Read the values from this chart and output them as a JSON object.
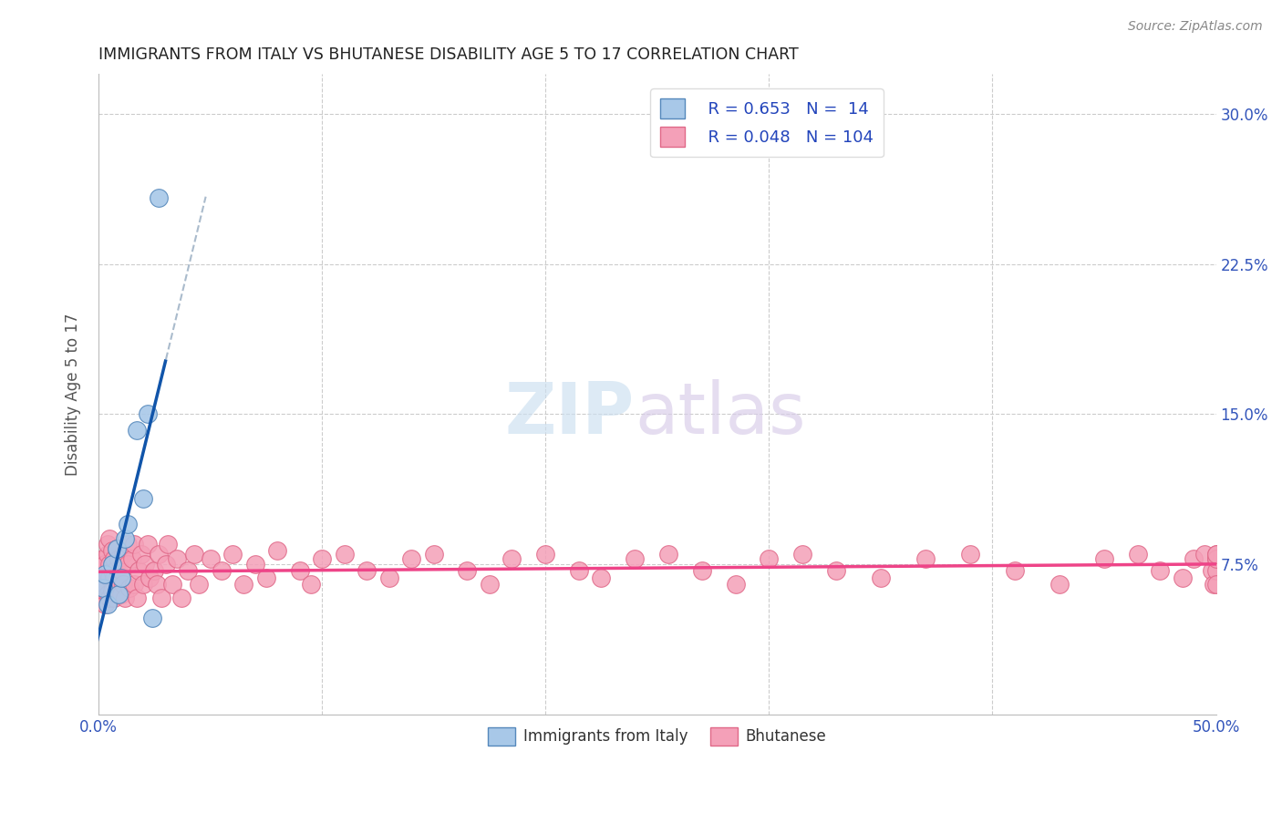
{
  "title": "IMMIGRANTS FROM ITALY VS BHUTANESE DISABILITY AGE 5 TO 17 CORRELATION CHART",
  "source": "Source: ZipAtlas.com",
  "ylabel": "Disability Age 5 to 17",
  "xlim": [
    0.0,
    0.5
  ],
  "ylim": [
    0.0,
    0.32
  ],
  "xticks": [
    0.0,
    0.1,
    0.2,
    0.3,
    0.4,
    0.5
  ],
  "xtick_labels": [
    "0.0%",
    "",
    "",
    "",
    "",
    "50.0%"
  ],
  "yticks_right": [
    0.075,
    0.15,
    0.225,
    0.3
  ],
  "ytick_labels_right": [
    "7.5%",
    "15.0%",
    "22.5%",
    "30.0%"
  ],
  "blue_scatter_color": "#a8c8e8",
  "blue_scatter_edge": "#5588bb",
  "pink_scatter_color": "#f4a0b8",
  "pink_scatter_edge": "#e06888",
  "blue_line_color": "#1155aa",
  "pink_line_color": "#ee4488",
  "dash_line_color": "#aabbcc",
  "legend_r1": "R = 0.653",
  "legend_n1": "N =  14",
  "legend_r2": "R = 0.048",
  "legend_n2": "N = 104",
  "italy_x": [
    0.002,
    0.003,
    0.004,
    0.006,
    0.008,
    0.009,
    0.01,
    0.012,
    0.013,
    0.017,
    0.02,
    0.022,
    0.024,
    0.027
  ],
  "italy_y": [
    0.063,
    0.07,
    0.055,
    0.075,
    0.083,
    0.06,
    0.068,
    0.088,
    0.095,
    0.142,
    0.108,
    0.15,
    0.048,
    0.258
  ],
  "bhutan_x": [
    0.001,
    0.001,
    0.002,
    0.002,
    0.002,
    0.003,
    0.003,
    0.003,
    0.004,
    0.004,
    0.004,
    0.004,
    0.005,
    0.005,
    0.005,
    0.005,
    0.006,
    0.006,
    0.006,
    0.007,
    0.007,
    0.007,
    0.008,
    0.008,
    0.008,
    0.009,
    0.009,
    0.01,
    0.01,
    0.011,
    0.011,
    0.012,
    0.013,
    0.013,
    0.014,
    0.015,
    0.016,
    0.016,
    0.017,
    0.018,
    0.019,
    0.02,
    0.021,
    0.022,
    0.023,
    0.025,
    0.026,
    0.027,
    0.028,
    0.03,
    0.031,
    0.033,
    0.035,
    0.037,
    0.04,
    0.043,
    0.045,
    0.05,
    0.055,
    0.06,
    0.065,
    0.07,
    0.075,
    0.08,
    0.09,
    0.095,
    0.1,
    0.11,
    0.12,
    0.13,
    0.14,
    0.15,
    0.165,
    0.175,
    0.185,
    0.2,
    0.215,
    0.225,
    0.24,
    0.255,
    0.27,
    0.285,
    0.3,
    0.315,
    0.33,
    0.35,
    0.37,
    0.39,
    0.41,
    0.43,
    0.45,
    0.465,
    0.475,
    0.485,
    0.49,
    0.495,
    0.498,
    0.499,
    0.5,
    0.5,
    0.5,
    0.5,
    0.5,
    0.5
  ],
  "bhutan_y": [
    0.062,
    0.068,
    0.058,
    0.072,
    0.078,
    0.055,
    0.065,
    0.075,
    0.06,
    0.07,
    0.08,
    0.085,
    0.058,
    0.068,
    0.075,
    0.088,
    0.062,
    0.072,
    0.082,
    0.058,
    0.068,
    0.078,
    0.06,
    0.073,
    0.083,
    0.065,
    0.078,
    0.06,
    0.072,
    0.065,
    0.08,
    0.058,
    0.075,
    0.085,
    0.063,
    0.078,
    0.065,
    0.085,
    0.058,
    0.072,
    0.08,
    0.065,
    0.075,
    0.085,
    0.068,
    0.072,
    0.065,
    0.08,
    0.058,
    0.075,
    0.085,
    0.065,
    0.078,
    0.058,
    0.072,
    0.08,
    0.065,
    0.078,
    0.072,
    0.08,
    0.065,
    0.075,
    0.068,
    0.082,
    0.072,
    0.065,
    0.078,
    0.08,
    0.072,
    0.068,
    0.078,
    0.08,
    0.072,
    0.065,
    0.078,
    0.08,
    0.072,
    0.068,
    0.078,
    0.08,
    0.072,
    0.065,
    0.078,
    0.08,
    0.072,
    0.068,
    0.078,
    0.08,
    0.072,
    0.065,
    0.078,
    0.08,
    0.072,
    0.068,
    0.078,
    0.08,
    0.072,
    0.065,
    0.078,
    0.08,
    0.072,
    0.065,
    0.078,
    0.08
  ]
}
